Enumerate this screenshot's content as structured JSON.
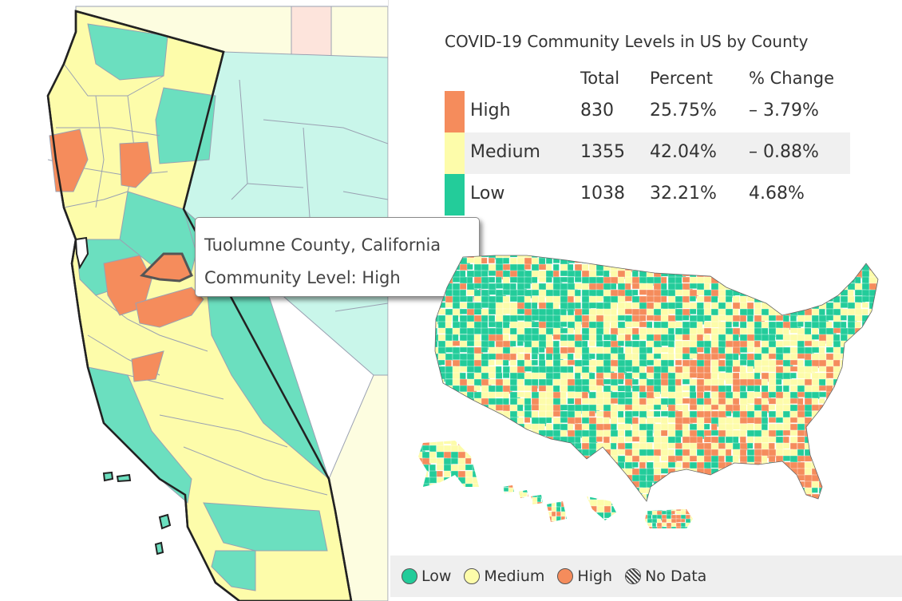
{
  "colors": {
    "high": "#f58c5c",
    "medium": "#fdfcaa",
    "low": "#23cc9a",
    "low_ca": "#6bdfbf",
    "neighbor_nevada": "#c9f6ea",
    "neighbor_oregon": "#fdfde0",
    "neighbor_pink": "#fde4dc",
    "selected_outline": "#555555"
  },
  "tooltip": {
    "county": "Tuolumne County, California",
    "level_text": "Community Level: High"
  },
  "stats": {
    "title": "COVID-19 Community Levels in US by County",
    "headers": {
      "total": "Total",
      "percent": "Percent",
      "change": "% Change"
    },
    "rows": [
      {
        "level": "High",
        "total": "830",
        "percent": "25.75%",
        "change": "– 3.79%",
        "color": "#f58c5c"
      },
      {
        "level": "Medium",
        "total": "1355",
        "percent": "42.04%",
        "change": "– 0.88%",
        "color": "#fdfcaa"
      },
      {
        "level": "Low",
        "total": "1038",
        "percent": "32.21%",
        "change": "4.68%",
        "color": "#23cc9a"
      }
    ]
  },
  "legend": {
    "items": [
      {
        "label": "Low",
        "color": "#23cc9a",
        "icon": "low-swatch-icon"
      },
      {
        "label": "Medium",
        "color": "#fdfcaa",
        "icon": "medium-swatch-icon"
      },
      {
        "label": "High",
        "color": "#f58c5c",
        "icon": "high-swatch-icon"
      },
      {
        "label": "No Data",
        "color": "hatched",
        "icon": "no-data-swatch-icon"
      }
    ]
  }
}
